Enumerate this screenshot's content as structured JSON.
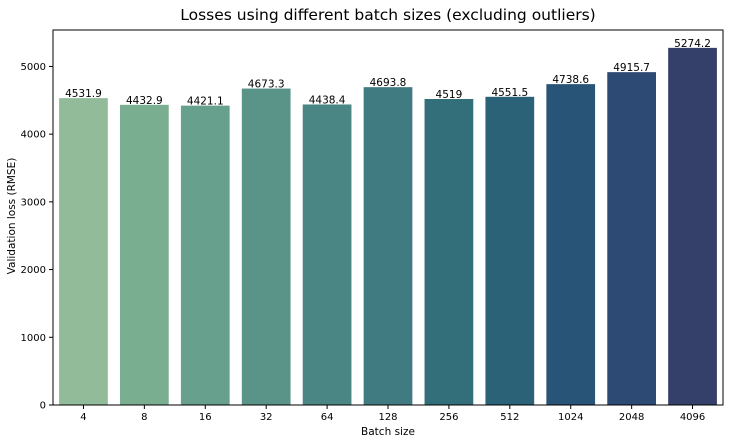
{
  "chart_data": {
    "type": "bar",
    "title": "Losses using different batch sizes (excluding outliers)",
    "xlabel": "Batch size",
    "ylabel": "Validation loss (RMSE)",
    "categories": [
      "4",
      "8",
      "16",
      "32",
      "64",
      "128",
      "256",
      "512",
      "1024",
      "2048",
      "4096"
    ],
    "values": [
      4531.9,
      4432.9,
      4421.1,
      4673.3,
      4438.4,
      4693.8,
      4519,
      4551.5,
      4738.6,
      4915.7,
      5274.2
    ],
    "value_labels": [
      "4531.9",
      "4432.9",
      "4421.1",
      "4673.3",
      "4438.4",
      "4693.8",
      "4519",
      "4551.5",
      "4738.6",
      "4915.7",
      "5274.2"
    ],
    "yticks": [
      0,
      1000,
      2000,
      3000,
      4000,
      5000
    ],
    "ylim": [
      0,
      5538
    ],
    "grid": false,
    "legend": "none",
    "bar_colors": [
      "#92bb99",
      "#7aae91",
      "#67a08c",
      "#5a9489",
      "#4a8784",
      "#3f7b81",
      "#336e7b",
      "#2c6277",
      "#285477",
      "#2d4a74",
      "#343f6a"
    ]
  }
}
